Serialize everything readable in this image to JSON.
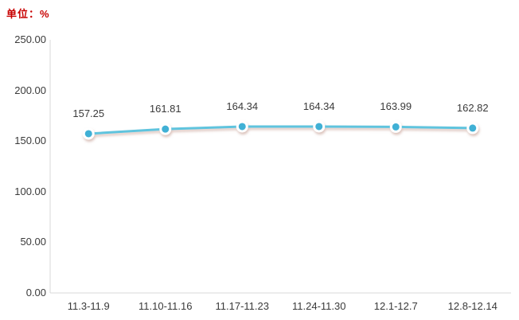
{
  "unit_label": "单位：%",
  "chart_data": {
    "type": "line",
    "title": "",
    "xlabel": "",
    "ylabel": "单位：%",
    "categories": [
      "11.3-11.9",
      "11.10-11.16",
      "11.17-11.23",
      "11.24-11.30",
      "12.1-12.7",
      "12.8-12.14"
    ],
    "series": [
      {
        "name": "",
        "values": [
          157.25,
          161.81,
          164.34,
          164.34,
          163.99,
          162.82
        ],
        "data_labels": [
          "157.25",
          "161.81",
          "164.34",
          "164.34",
          "163.99",
          "162.82"
        ]
      }
    ],
    "ylim": [
      0,
      250
    ],
    "yticks": [
      0,
      50,
      100,
      150,
      200,
      250
    ],
    "ytick_labels": [
      "0.00",
      "50.00",
      "100.00",
      "150.00",
      "200.00",
      "250.00"
    ],
    "grid": false,
    "legend_position": "none",
    "data_labels_visible": true,
    "colors": {
      "line": "#5fc4de",
      "marker_fill": "#3fb0d5",
      "marker_ring": "#ffffff",
      "marker_shadow": "#bb8d7f",
      "axis": "#d9d9d9",
      "text": "#3a3a3a",
      "unit_text": "#c80000"
    }
  }
}
